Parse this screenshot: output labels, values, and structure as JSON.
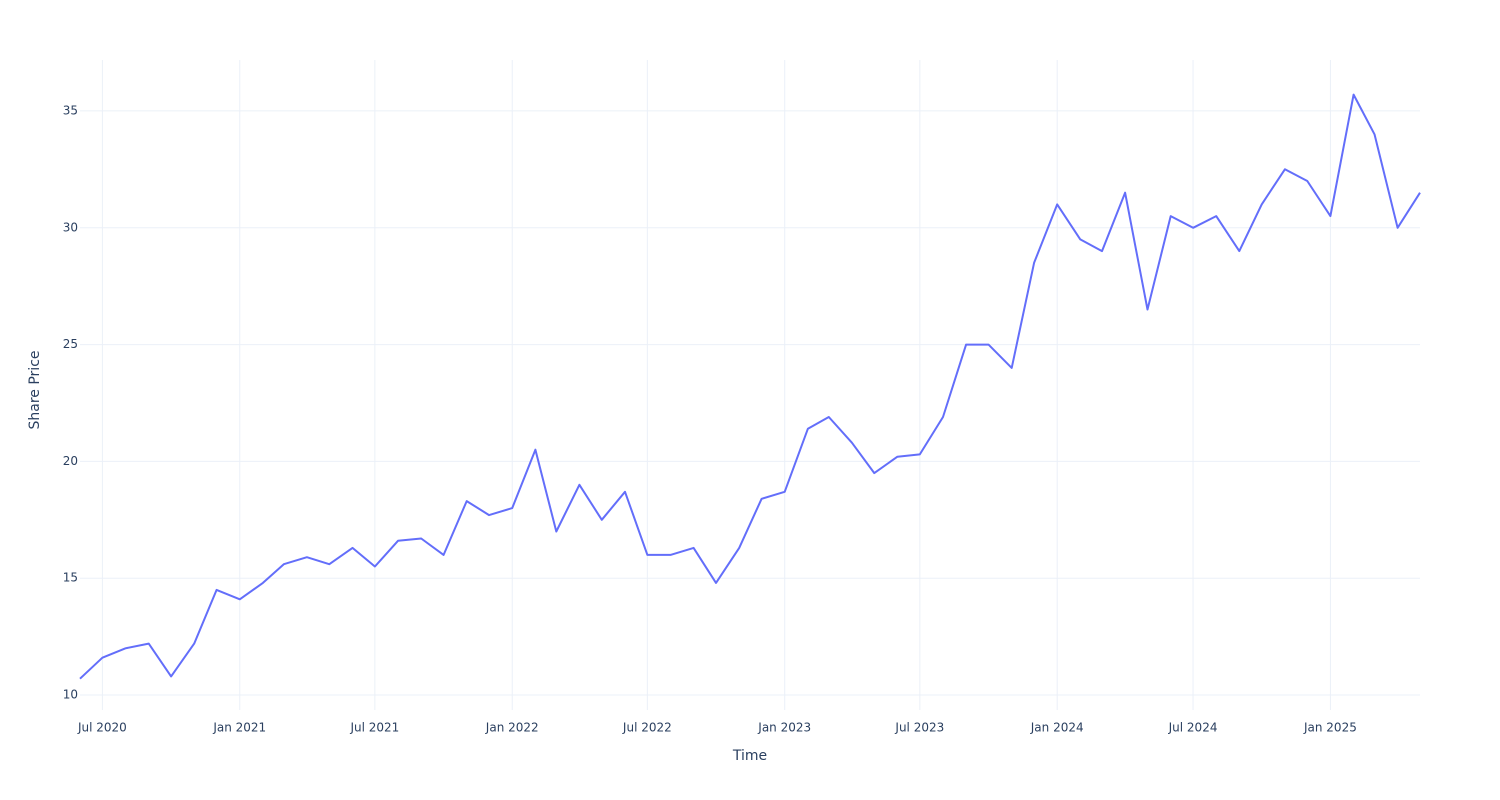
{
  "chart_data": {
    "type": "line",
    "x_label": "Time",
    "y_label": "Share Price",
    "x": [
      "2020-06",
      "2020-07",
      "2020-08",
      "2020-09",
      "2020-10",
      "2020-11",
      "2020-12",
      "2021-01",
      "2021-02",
      "2021-03",
      "2021-04",
      "2021-05",
      "2021-06",
      "2021-07",
      "2021-08",
      "2021-09",
      "2021-10",
      "2021-11",
      "2021-12",
      "2022-01",
      "2022-02",
      "2022-03",
      "2022-04",
      "2022-05",
      "2022-06",
      "2022-07",
      "2022-08",
      "2022-09",
      "2022-10",
      "2022-11",
      "2022-12",
      "2023-01",
      "2023-02",
      "2023-03",
      "2023-04",
      "2023-05",
      "2023-06",
      "2023-07",
      "2023-08",
      "2023-09",
      "2023-10",
      "2023-11",
      "2023-12",
      "2024-01",
      "2024-02",
      "2024-03",
      "2024-04",
      "2024-05",
      "2024-06",
      "2024-07",
      "2024-08",
      "2024-09",
      "2024-10",
      "2024-11",
      "2024-12",
      "2025-01",
      "2025-02",
      "2025-03",
      "2025-04",
      "2025-05"
    ],
    "series": [
      {
        "name": "Share Price",
        "color": "#636efa",
        "values": [
          10.7,
          11.6,
          12.0,
          12.2,
          10.8,
          12.2,
          14.5,
          14.1,
          14.8,
          15.6,
          15.9,
          15.6,
          16.3,
          15.5,
          16.6,
          16.7,
          16.0,
          18.3,
          17.7,
          18.0,
          20.5,
          17.0,
          19.0,
          17.5,
          18.7,
          16.0,
          16.0,
          16.3,
          14.8,
          16.3,
          18.4,
          18.7,
          21.4,
          21.9,
          20.8,
          19.5,
          20.2,
          20.3,
          21.9,
          25.0,
          25.0,
          24.0,
          28.5,
          31.0,
          29.5,
          29.0,
          31.5,
          26.5,
          30.5,
          30.0,
          30.5,
          29.0,
          31.0,
          32.5,
          32.0,
          30.5,
          35.7,
          34.0,
          30.0,
          31.5
        ]
      }
    ],
    "xlim": [
      "2020-06",
      "2025-05"
    ],
    "xticks": [
      {
        "value": "2020-07",
        "label": "Jul 2020"
      },
      {
        "value": "2021-01",
        "label": "Jan 2021"
      },
      {
        "value": "2021-07",
        "label": "Jul 2021"
      },
      {
        "value": "2022-01",
        "label": "Jan 2022"
      },
      {
        "value": "2022-07",
        "label": "Jul 2022"
      },
      {
        "value": "2023-01",
        "label": "Jan 2023"
      },
      {
        "value": "2023-07",
        "label": "Jul 2023"
      },
      {
        "value": "2024-01",
        "label": "Jan 2024"
      },
      {
        "value": "2024-07",
        "label": "Jul 2024"
      },
      {
        "value": "2025-01",
        "label": "Jan 2025"
      }
    ],
    "ylim": [
      9.36,
      37.18
    ],
    "yticks": [
      10,
      15,
      20,
      25,
      30,
      35
    ],
    "grid": true
  }
}
